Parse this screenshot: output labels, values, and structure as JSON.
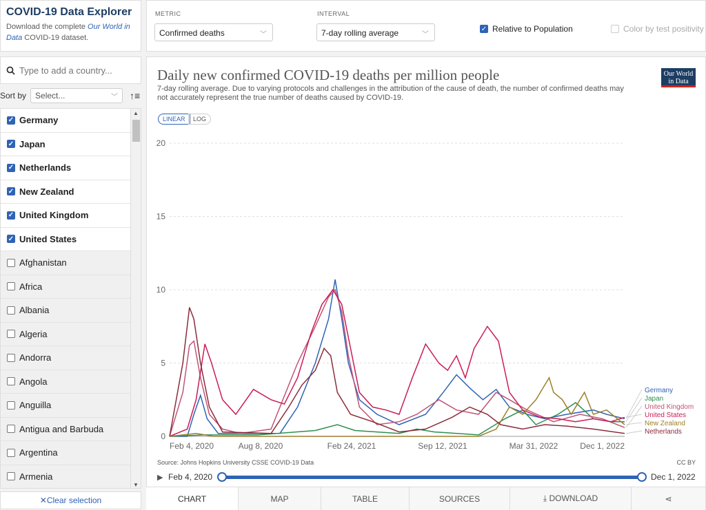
{
  "sidebar": {
    "title": "COVID-19 Data Explorer",
    "desc_prefix": "Download the complete ",
    "desc_link": "Our World in Data",
    "desc_suffix": " COVID-19 dataset.",
    "search_placeholder": "Type to add a country...",
    "sort_label": "Sort by",
    "sort_value": "Select...",
    "entities": [
      {
        "name": "Germany",
        "selected": true
      },
      {
        "name": "Japan",
        "selected": true
      },
      {
        "name": "Netherlands",
        "selected": true
      },
      {
        "name": "New Zealand",
        "selected": true
      },
      {
        "name": "United Kingdom",
        "selected": true
      },
      {
        "name": "United States",
        "selected": true
      },
      {
        "name": "Afghanistan",
        "selected": false
      },
      {
        "name": "Africa",
        "selected": false
      },
      {
        "name": "Albania",
        "selected": false
      },
      {
        "name": "Algeria",
        "selected": false
      },
      {
        "name": "Andorra",
        "selected": false
      },
      {
        "name": "Angola",
        "selected": false
      },
      {
        "name": "Anguilla",
        "selected": false
      },
      {
        "name": "Antigua and Barbuda",
        "selected": false
      },
      {
        "name": "Argentina",
        "selected": false
      },
      {
        "name": "Armenia",
        "selected": false
      }
    ],
    "clear_label": "✕Clear selection"
  },
  "controls": {
    "metric_label": "METRIC",
    "metric_value": "Confirmed deaths",
    "interval_label": "INTERVAL",
    "interval_value": "7-day rolling average",
    "relative_label": "Relative to Population",
    "color_label": "Color by test positivity"
  },
  "chart_data": {
    "type": "line",
    "title": "Daily new confirmed COVID-19 deaths per million people",
    "subtitle": "7-day rolling average. Due to varying protocols and challenges in the attribution of the cause of death, the number of confirmed deaths may not accurately represent the true number of deaths caused by COVID-19.",
    "xlabel": "",
    "ylabel": "",
    "ylim": [
      0,
      20
    ],
    "yticks": [
      0,
      5,
      10,
      15,
      20
    ],
    "xticks": [
      "Feb 4, 2020",
      "Aug 8, 2020",
      "Feb 24, 2021",
      "Sep 12, 2021",
      "Mar 31, 2022",
      "Dec 1, 2022"
    ],
    "x_days_range": [
      0,
      1031
    ],
    "grid": true,
    "scale": "linear",
    "series": [
      {
        "name": "Germany",
        "color": "#2f63b5",
        "points": [
          [
            0,
            0
          ],
          [
            40,
            0
          ],
          [
            55,
            1.5
          ],
          [
            70,
            2.8
          ],
          [
            85,
            1.2
          ],
          [
            110,
            0.2
          ],
          [
            250,
            0.2
          ],
          [
            290,
            2
          ],
          [
            330,
            5
          ],
          [
            360,
            8
          ],
          [
            375,
            10.7
          ],
          [
            390,
            8
          ],
          [
            405,
            5
          ],
          [
            430,
            2.5
          ],
          [
            470,
            1.5
          ],
          [
            520,
            0.8
          ],
          [
            580,
            1.5
          ],
          [
            620,
            3
          ],
          [
            650,
            4.2
          ],
          [
            680,
            3.3
          ],
          [
            710,
            2.5
          ],
          [
            740,
            3.2
          ],
          [
            770,
            2
          ],
          [
            810,
            1.5
          ],
          [
            850,
            1.2
          ],
          [
            900,
            1.5
          ],
          [
            960,
            1.8
          ],
          [
            990,
            1.5
          ],
          [
            1031,
            1.2
          ]
        ]
      },
      {
        "name": "Japan",
        "color": "#2d8e4f",
        "points": [
          [
            0,
            0
          ],
          [
            80,
            0.1
          ],
          [
            200,
            0.1
          ],
          [
            330,
            0.4
          ],
          [
            380,
            0.8
          ],
          [
            420,
            0.4
          ],
          [
            520,
            0.2
          ],
          [
            560,
            0.5
          ],
          [
            600,
            0.3
          ],
          [
            700,
            0.1
          ],
          [
            760,
            1.2
          ],
          [
            800,
            1.8
          ],
          [
            830,
            0.8
          ],
          [
            880,
            1.5
          ],
          [
            920,
            2.3
          ],
          [
            960,
            1.2
          ],
          [
            1000,
            1.0
          ],
          [
            1031,
            1.0
          ]
        ]
      },
      {
        "name": "United Kingdom",
        "color": "#c05476",
        "points": [
          [
            0,
            0
          ],
          [
            30,
            3
          ],
          [
            45,
            6.2
          ],
          [
            55,
            6.5
          ],
          [
            70,
            4
          ],
          [
            90,
            1.5
          ],
          [
            120,
            0.5
          ],
          [
            160,
            0.2
          ],
          [
            230,
            0.5
          ],
          [
            290,
            5
          ],
          [
            330,
            7.5
          ],
          [
            360,
            9.5
          ],
          [
            375,
            10
          ],
          [
            390,
            8.5
          ],
          [
            405,
            5.5
          ],
          [
            430,
            2
          ],
          [
            470,
            0.8
          ],
          [
            520,
            1
          ],
          [
            560,
            1.5
          ],
          [
            610,
            2.5
          ],
          [
            650,
            1.8
          ],
          [
            700,
            1.5
          ],
          [
            740,
            3
          ],
          [
            770,
            2.5
          ],
          [
            810,
            1.8
          ],
          [
            870,
            1.0
          ],
          [
            930,
            1.5
          ],
          [
            980,
            1.2
          ],
          [
            1031,
            0.6
          ]
        ]
      },
      {
        "name": "United States",
        "color": "#ca1c54",
        "points": [
          [
            0,
            0
          ],
          [
            40,
            0.5
          ],
          [
            60,
            2.5
          ],
          [
            80,
            6.3
          ],
          [
            95,
            5
          ],
          [
            120,
            2.5
          ],
          [
            150,
            1.5
          ],
          [
            190,
            3.2
          ],
          [
            230,
            2.5
          ],
          [
            260,
            2.2
          ],
          [
            290,
            4
          ],
          [
            320,
            7
          ],
          [
            345,
            9
          ],
          [
            370,
            10
          ],
          [
            390,
            9
          ],
          [
            410,
            6
          ],
          [
            430,
            3
          ],
          [
            460,
            2
          ],
          [
            490,
            1.8
          ],
          [
            520,
            1.5
          ],
          [
            550,
            4
          ],
          [
            580,
            6.3
          ],
          [
            610,
            5
          ],
          [
            630,
            4.5
          ],
          [
            650,
            5.5
          ],
          [
            670,
            4
          ],
          [
            690,
            6
          ],
          [
            720,
            7.5
          ],
          [
            745,
            6.5
          ],
          [
            770,
            3
          ],
          [
            800,
            1.8
          ],
          [
            840,
            1.3
          ],
          [
            880,
            1.2
          ],
          [
            920,
            1.0
          ],
          [
            960,
            1.2
          ],
          [
            1000,
            1.0
          ],
          [
            1031,
            1.3
          ]
        ]
      },
      {
        "name": "New Zealand",
        "color": "#9c7f2b",
        "points": [
          [
            0,
            0
          ],
          [
            60,
            0.2
          ],
          [
            100,
            0
          ],
          [
            700,
            0
          ],
          [
            740,
            0.5
          ],
          [
            770,
            2
          ],
          [
            800,
            1.5
          ],
          [
            830,
            2.5
          ],
          [
            860,
            4
          ],
          [
            870,
            3
          ],
          [
            890,
            2.5
          ],
          [
            910,
            1.5
          ],
          [
            940,
            3
          ],
          [
            960,
            1.5
          ],
          [
            990,
            1.8
          ],
          [
            1031,
            0.8
          ]
        ]
      },
      {
        "name": "Netherlands",
        "color": "#8b2b3a",
        "points": [
          [
            0,
            0
          ],
          [
            30,
            5
          ],
          [
            45,
            8.8
          ],
          [
            55,
            8
          ],
          [
            70,
            5
          ],
          [
            90,
            2
          ],
          [
            120,
            0.3
          ],
          [
            230,
            0.2
          ],
          [
            270,
            2
          ],
          [
            300,
            3.5
          ],
          [
            330,
            4.5
          ],
          [
            350,
            6
          ],
          [
            365,
            5.5
          ],
          [
            380,
            3
          ],
          [
            410,
            1.5
          ],
          [
            460,
            1
          ],
          [
            520,
            0.3
          ],
          [
            580,
            0.5
          ],
          [
            640,
            1.3
          ],
          [
            680,
            2
          ],
          [
            720,
            1.5
          ],
          [
            750,
            0.8
          ],
          [
            800,
            0.5
          ],
          [
            850,
            0.8
          ],
          [
            900,
            0.7
          ],
          [
            960,
            0.5
          ],
          [
            1031,
            0.2
          ]
        ]
      }
    ]
  },
  "chart": {
    "scale_linear": "LINEAR",
    "scale_log": "LOG",
    "logo_line1": "Our World",
    "logo_line2": "in Data",
    "source": "Source: Johns Hopkins University CSSE COVID-19 Data",
    "license": "CC BY"
  },
  "timeline": {
    "start": "Feb 4, 2020",
    "end": "Dec 1, 2022"
  },
  "tabs": [
    {
      "label": "CHART",
      "active": true
    },
    {
      "label": "MAP",
      "active": false
    },
    {
      "label": "TABLE",
      "active": false
    },
    {
      "label": "SOURCES",
      "active": false
    },
    {
      "label": "⤓ DOWNLOAD",
      "active": false
    },
    {
      "label": "⋖",
      "active": false
    }
  ]
}
